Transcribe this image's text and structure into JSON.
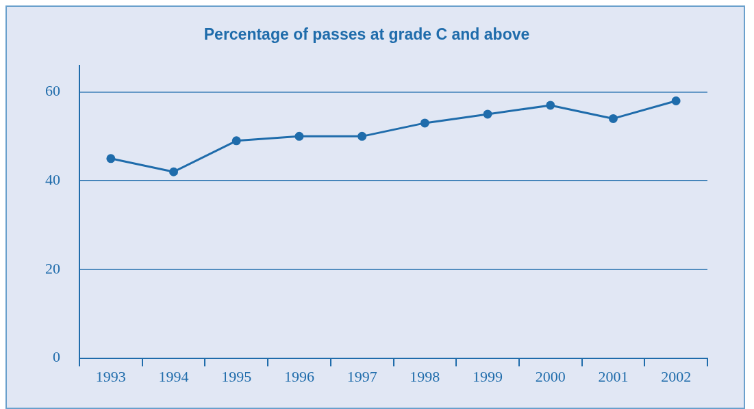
{
  "chart_data": {
    "type": "line",
    "title": "Percentage of passes at grade C and above",
    "categories": [
      "1993",
      "1994",
      "1995",
      "1996",
      "1997",
      "1998",
      "1999",
      "2000",
      "2001",
      "2002"
    ],
    "series": [
      {
        "color": "#1f6cab",
        "values": [
          45,
          42,
          49,
          50,
          50,
          53,
          55,
          57,
          54,
          58
        ]
      }
    ],
    "ylim": [
      0,
      66
    ],
    "yticks": [
      0,
      20,
      40,
      60
    ],
    "grid": "y",
    "legend": false,
    "marker": "circle",
    "line_style": "solid"
  }
}
